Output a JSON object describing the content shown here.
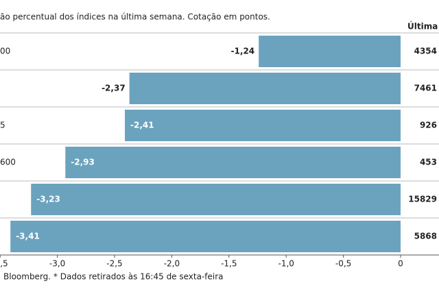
{
  "chart_data": {
    "type": "bar",
    "orientation": "horizontal",
    "title": "ão percentual dos índices na última semana. Cotação em pontos.",
    "source": "Bloomberg.  * Dados retirados às 16:45 de sexta-feira",
    "categories": [
      "00",
      null,
      "5",
      "600",
      null,
      null
    ],
    "values": [
      -1.24,
      -2.37,
      -2.41,
      -2.93,
      -3.23,
      -3.41
    ],
    "value_labels": [
      "-1,24",
      "-2,37",
      "-2,41",
      "-2,93",
      "-3,23",
      "-3,41"
    ],
    "color": "#6ba3bf",
    "xlim": [
      -3.5,
      0
    ],
    "xticks": [
      {
        "value": -3.5,
        "label": ",5"
      },
      {
        "value": -3.0,
        "label": "-3,0"
      },
      {
        "value": -2.5,
        "label": "-2,5"
      },
      {
        "value": -2.0,
        "label": "-2,0"
      },
      {
        "value": -1.5,
        "label": "-1,5"
      },
      {
        "value": -1.0,
        "label": "-1,0"
      },
      {
        "value": -0.5,
        "label": "-0,5"
      },
      0
    ],
    "last_column": {
      "header": "Última c",
      "values": [
        "4354",
        "7461",
        "926",
        "453",
        "15829",
        "5868"
      ]
    }
  }
}
